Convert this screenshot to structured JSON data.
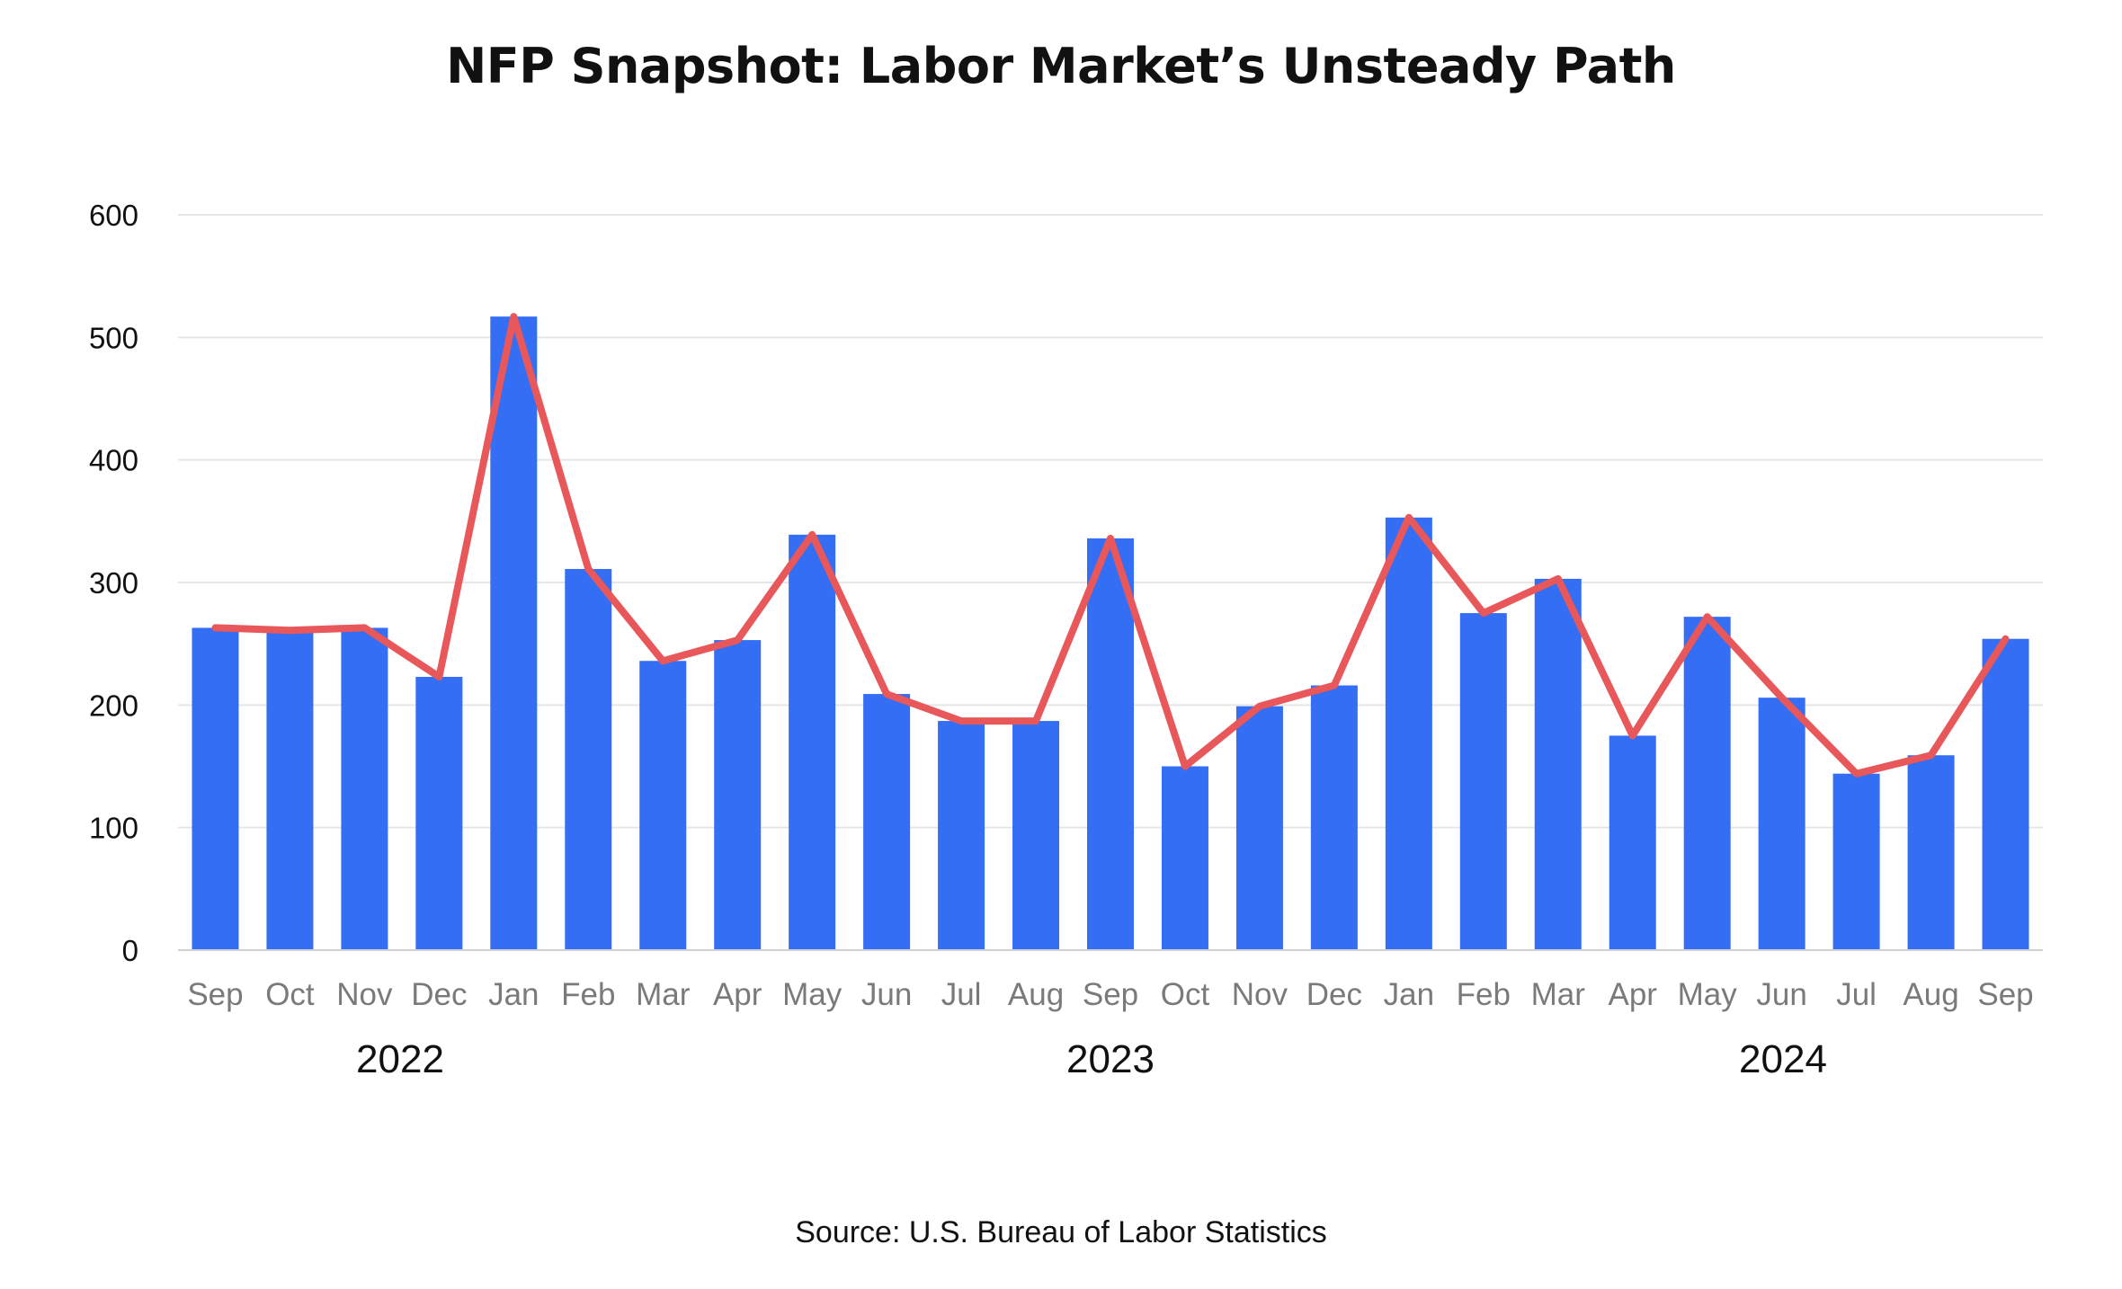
{
  "chart_data": {
    "type": "bar",
    "title": "NFP Snapshot: Labor Market’s Unsteady Path",
    "source": "Source: U.S. Bureau of Labor Statistics",
    "categories": [
      "Sep",
      "Oct",
      "Nov",
      "Dec",
      "Jan",
      "Feb",
      "Mar",
      "Apr",
      "May",
      "Jun",
      "Jul",
      "Aug",
      "Sep",
      "Oct",
      "Nov",
      "Dec",
      "Jan",
      "Feb",
      "Mar",
      "Apr",
      "May",
      "Jun",
      "Jul",
      "Aug",
      "Sep"
    ],
    "year_groups": [
      {
        "label": "2022",
        "start": 0,
        "end": 4
      },
      {
        "label": "2023",
        "start": 4,
        "end": 16
      },
      {
        "label": "2024",
        "start": 16,
        "end": 25
      }
    ],
    "series": [
      {
        "kind": "bar",
        "color": "#346EF5",
        "values": [
          263,
          261,
          263,
          223,
          517,
          311,
          236,
          253,
          339,
          209,
          187,
          187,
          336,
          150,
          199,
          216,
          353,
          275,
          303,
          175,
          272,
          206,
          144,
          159,
          254
        ]
      },
      {
        "kind": "line",
        "color": "#E8575A",
        "values": [
          263,
          261,
          263,
          223,
          517,
          311,
          236,
          253,
          339,
          209,
          187,
          187,
          336,
          150,
          199,
          216,
          353,
          275,
          303,
          175,
          272,
          206,
          144,
          159,
          254
        ]
      }
    ],
    "ylim": [
      0,
      600
    ],
    "yticks": [
      0,
      100,
      200,
      300,
      400,
      500,
      600
    ],
    "grid": true,
    "legend": "none"
  }
}
